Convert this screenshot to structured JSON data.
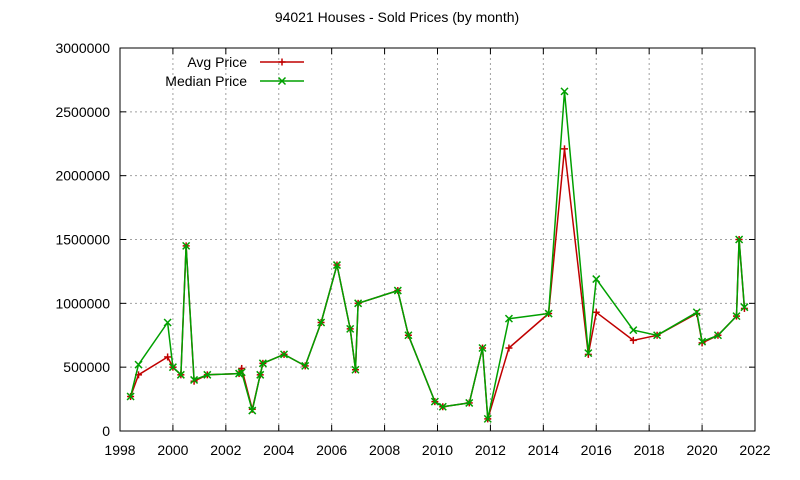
{
  "chart_data": {
    "type": "line",
    "title": "94021 Houses - Sold Prices (by month)",
    "xlabel": "",
    "ylabel": "",
    "xlim": [
      1998,
      2022
    ],
    "ylim": [
      0,
      3000000
    ],
    "x_ticks": [
      "1998",
      "2000",
      "2002",
      "2004",
      "2006",
      "2008",
      "2010",
      "2012",
      "2014",
      "2016",
      "2018",
      "2020",
      "2022"
    ],
    "y_ticks": [
      "0",
      "500000",
      "1000000",
      "1500000",
      "2000000",
      "2500000",
      "3000000"
    ],
    "grid": true,
    "legend_position": "top-left",
    "series": [
      {
        "name": "Avg Price",
        "color": "#c00000",
        "marker": "plus",
        "x": [
          1998.4,
          1998.7,
          1999.8,
          2000.0,
          2000.3,
          2000.5,
          2000.8,
          2001.3,
          2002.5,
          2002.6,
          2003.0,
          2003.3,
          2003.4,
          2004.2,
          2005.0,
          2005.6,
          2006.2,
          2006.7,
          2006.9,
          2007.0,
          2008.5,
          2008.9,
          2009.9,
          2010.2,
          2011.2,
          2011.7,
          2011.9,
          2012.7,
          2014.2,
          2014.8,
          2015.7,
          2016.0,
          2017.4,
          2018.3,
          2019.8,
          2020.0,
          2020.6,
          2021.3,
          2021.4,
          2021.6
        ],
        "values": [
          270000,
          440000,
          580000,
          500000,
          440000,
          1450000,
          390000,
          440000,
          450000,
          490000,
          170000,
          440000,
          530000,
          600000,
          510000,
          850000,
          1300000,
          800000,
          480000,
          1000000,
          1100000,
          750000,
          230000,
          190000,
          220000,
          650000,
          95000,
          650000,
          920000,
          2210000,
          600000,
          930000,
          710000,
          750000,
          920000,
          690000,
          750000,
          900000,
          1500000,
          960000
        ]
      },
      {
        "name": "Median Price",
        "color": "#00a000",
        "marker": "x",
        "x": [
          1998.4,
          1998.7,
          1999.8,
          2000.0,
          2000.3,
          2000.5,
          2000.8,
          2001.3,
          2002.5,
          2002.6,
          2003.0,
          2003.3,
          2003.4,
          2004.2,
          2005.0,
          2005.6,
          2006.2,
          2006.7,
          2006.9,
          2007.0,
          2008.5,
          2008.9,
          2009.9,
          2010.2,
          2011.2,
          2011.7,
          2011.9,
          2012.7,
          2014.2,
          2014.8,
          2015.7,
          2016.0,
          2017.4,
          2018.3,
          2019.8,
          2020.0,
          2020.6,
          2021.3,
          2021.4,
          2021.6
        ],
        "values": [
          270000,
          520000,
          850000,
          500000,
          440000,
          1450000,
          400000,
          440000,
          450000,
          460000,
          160000,
          440000,
          530000,
          600000,
          510000,
          850000,
          1300000,
          800000,
          480000,
          1000000,
          1100000,
          750000,
          230000,
          190000,
          220000,
          650000,
          95000,
          880000,
          920000,
          2660000,
          610000,
          1190000,
          790000,
          750000,
          930000,
          700000,
          750000,
          900000,
          1500000,
          970000
        ]
      }
    ]
  }
}
